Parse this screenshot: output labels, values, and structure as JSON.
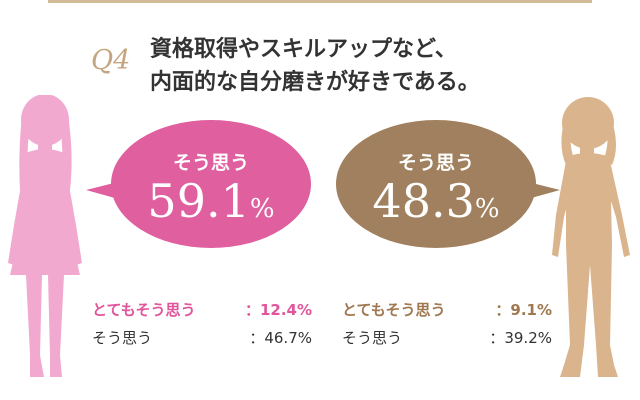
{
  "question": {
    "number": "Q4",
    "line1": "資格取得やスキルアップなど、",
    "line2": "内面的な自分磨きが好きである。"
  },
  "colors": {
    "accent_bar": "#d4bb98",
    "left_bubble": "#df5f9f",
    "right_bubble": "#a0805e",
    "left_figure": "#f2a9cf",
    "right_figure": "#d9b48c"
  },
  "left": {
    "bubble_label": "そう思う",
    "bubble_value": "59.1",
    "bubble_unit": "%",
    "stats": [
      {
        "label": "とてもそう思う",
        "value": "：12.4%"
      },
      {
        "label": "そう思う",
        "value": "：46.7%"
      }
    ]
  },
  "right": {
    "bubble_label": "そう思う",
    "bubble_value": "48.3",
    "bubble_unit": "%",
    "stats": [
      {
        "label": "とてもそう思う",
        "value": "：9.1%"
      },
      {
        "label": "そう思う",
        "value": "：39.2%"
      }
    ]
  }
}
